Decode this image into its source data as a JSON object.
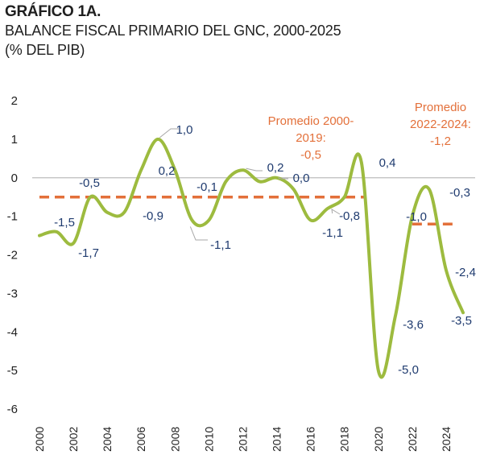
{
  "header": {
    "title": "GRÁFICO 1A.",
    "subtitle": "BALANCE FISCAL PRIMARIO DEL GNC, 2000-2025",
    "unit": "(% DEL PIB)"
  },
  "colors": {
    "line": "#9dbb3f",
    "average": "#e3703a",
    "labels": "#1f3b6f",
    "axis": "#bdbdbd"
  },
  "chart_data": {
    "type": "line",
    "title": "BALANCE FISCAL PRIMARIO DEL GNC, 2000-2025",
    "ylabel": "(% DEL PIB)",
    "xlabel": "",
    "ylim": [
      -6,
      2
    ],
    "xlim": [
      2000,
      2025
    ],
    "grid": false,
    "y_ticks": [
      "2",
      "1",
      "0",
      "-1",
      "-2",
      "-3",
      "-4",
      "-5",
      "-6"
    ],
    "x_ticks": [
      "2000",
      "2002",
      "2004",
      "2006",
      "2008",
      "2010",
      "2012",
      "2014",
      "2016",
      "2018",
      "2020",
      "2022",
      "2024"
    ],
    "series": [
      {
        "x": [
          2000,
          2001,
          2002,
          2003,
          2004,
          2005,
          2006,
          2007,
          2008,
          2009,
          2010,
          2011,
          2012,
          2013,
          2014,
          2015,
          2016,
          2017,
          2018,
          2019,
          2020,
          2021,
          2022,
          2023,
          2024,
          2025
        ],
        "values": [
          -1.5,
          -1.4,
          -1.7,
          -0.5,
          -0.9,
          -0.9,
          0.2,
          1.0,
          0.2,
          -1.1,
          -1.1,
          -0.1,
          0.2,
          -0.1,
          0.0,
          -0.3,
          -1.1,
          -0.8,
          -0.5,
          0.4,
          -5.0,
          -3.6,
          -1.0,
          -0.3,
          -2.4,
          -3.5
        ]
      },
      {
        "name": "Promedio 2000-2019: -0,5",
        "x": [
          2000,
          2019
        ],
        "values": [
          -0.5,
          -0.5
        ]
      },
      {
        "name": "Promedio 2022-2024: -1,2",
        "x": [
          2022,
          2024
        ],
        "values": [
          -1.2,
          -1.2
        ]
      }
    ],
    "data_labels": [
      {
        "text": "-1,5",
        "x": 2001,
        "y": -1.5
      },
      {
        "text": "-1,7",
        "x": 2002,
        "y": -1.7
      },
      {
        "text": "-0,5",
        "x": 2003,
        "y": -0.5
      },
      {
        "text": "-0,9",
        "x": 2005,
        "y": -0.9
      },
      {
        "text": "0,2",
        "x": 2006,
        "y": 0.2
      },
      {
        "text": "1,0",
        "x": 2007,
        "y": 1.0
      },
      {
        "text": "-1,1",
        "x": 2009,
        "y": -1.1
      },
      {
        "text": "-0,1",
        "x": 2011,
        "y": -0.1
      },
      {
        "text": "0,2",
        "x": 2012,
        "y": 0.2
      },
      {
        "text": "0,0",
        "x": 2014,
        "y": 0.0
      },
      {
        "text": "-1,1",
        "x": 2016,
        "y": -1.1
      },
      {
        "text": "-0,8",
        "x": 2017,
        "y": -0.8
      },
      {
        "text": "0,4",
        "x": 2019,
        "y": 0.4
      },
      {
        "text": "-5,0",
        "x": 2020,
        "y": -5.0
      },
      {
        "text": "-3,6",
        "x": 2021,
        "y": -3.6
      },
      {
        "text": "-1,0",
        "x": 2022,
        "y": -1.0
      },
      {
        "text": "-0,3",
        "x": 2023,
        "y": -0.3
      },
      {
        "text": "-2,4",
        "x": 2024,
        "y": -2.4
      },
      {
        "text": "-3,5",
        "x": 2025,
        "y": -3.5
      }
    ],
    "annotations": [
      {
        "lines": [
          "Promedio 2000-",
          "2019:",
          "-0,5"
        ]
      },
      {
        "lines": [
          "Promedio",
          "2022-2024:",
          "-1,2"
        ]
      }
    ]
  }
}
